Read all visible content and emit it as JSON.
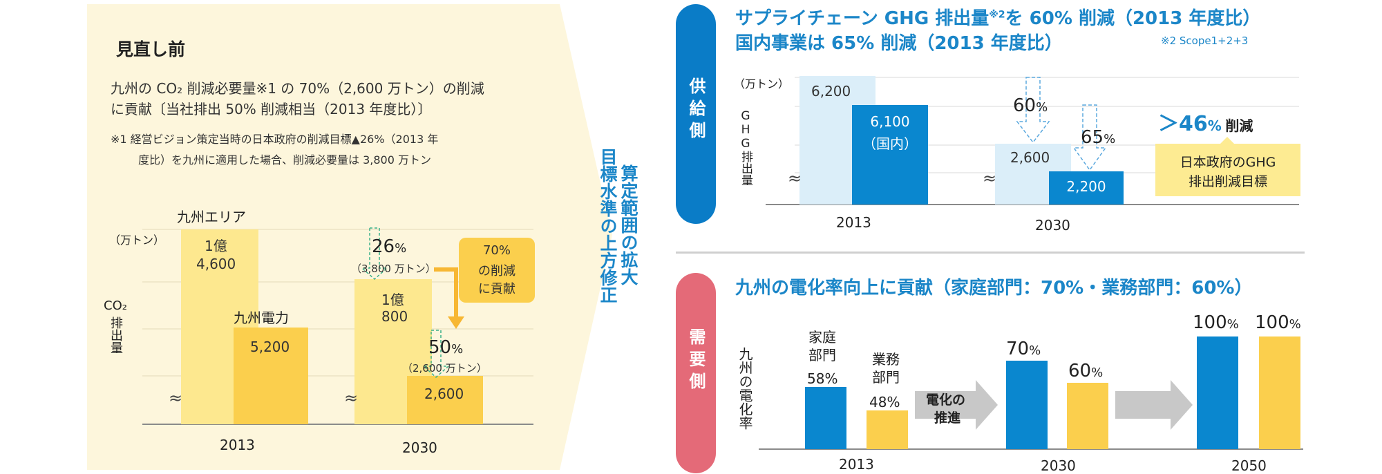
{
  "left_panel": {
    "heading": "見直し前",
    "desc_line1": "九州の CO₂ 削減必要量※1 の 70%（2,600 万トン）の削減",
    "desc_line2": "に貢献〔当社排出 50% 削減相当（2013 年度比）〕",
    "note_line1": "※1 経営ビジョン策定当時の日本政府の削減目標▲26%（2013 年",
    "note_line2": "度比）を九州に適用した場合、削減必要量は 3,800 万トン",
    "legend_kyushu_area": "九州エリア",
    "legend_kyushu_power": "九州電力",
    "unit": "（万トン）",
    "ylabel_co2": "CO₂",
    "ylabel_rest": "排出量",
    "bar_2013_area_l1": "1億",
    "bar_2013_area_l2": "4,600",
    "bar_2013_power": "5,200",
    "bar_2030_area_l1": "1億",
    "bar_2030_area_l2": "800",
    "bar_2030_power": "2,600",
    "pct_26": "26",
    "pct_26_sub": "（3,800 万トン）",
    "pct_50": "50",
    "pct_50_sub": "（2,600 万トン）",
    "pct_sign": "%",
    "callout_l1": "70%",
    "callout_l2": "の削減",
    "callout_l3": "に貢献",
    "year_2013": "2013",
    "year_2030": "2030",
    "break_mark": "≈"
  },
  "arrow_label": {
    "col1": "算定範囲の拡大",
    "col2": "目標水準の上方修正"
  },
  "supply": {
    "pill": "供給側",
    "title_l1_a": "サプライチェーン GHG 排出量",
    "title_l1_sup": "※2",
    "title_l1_b": "を 60% 削減（2013 年度比）",
    "title_l2": "国内事業は 65% 削減（2013 年度比）",
    "footnote": "※2 Scope1+2+3",
    "unit": "（万トン）",
    "ylabel": "GHG排出量",
    "bar_2013_total": "6,200",
    "bar_2013_domestic_l1": "6,100",
    "bar_2013_domestic_l2": "（国内）",
    "bar_2030_total": "2,600",
    "bar_2030_domestic": "2,200",
    "pct_60": "60",
    "pct_65": "65",
    "pct_sign": "%",
    "gt46": "＞46",
    "gt46_pct": "%",
    "gt46_label": "削減",
    "gov_box_l1": "日本政府のGHG",
    "gov_box_l2": "排出削減目標",
    "year_2013": "2013",
    "year_2030": "2030",
    "break_mark": "≈"
  },
  "demand": {
    "pill": "需要側",
    "title": "九州の電化率向上に貢献（家庭部門：70%・業務部門：60%）",
    "ylabel": "九州の電化率",
    "cat_household_l1": "家庭",
    "cat_household_l2": "部門",
    "cat_business_l1": "業務",
    "cat_business_l2": "部門",
    "val_2013_h": "58%",
    "val_2013_b": "48%",
    "val_2030_h": "70",
    "val_2030_b": "60",
    "val_2050_h": "100",
    "val_2050_b": "100",
    "pct_sign": "%",
    "promo_l1": "電化の",
    "promo_l2": "推進",
    "year_2013": "2013",
    "year_2030": "2030",
    "year_2050": "2050"
  },
  "colors": {
    "panel_bg": "#fdf6dc",
    "light_yellow": "#fde88f",
    "dark_yellow": "#fbcf4d",
    "light_blue": "#dbeef9",
    "blue": "#0a87cf",
    "title_blue": "#1b86c8",
    "red": "#e46a78",
    "gov_box": "#fdeb92",
    "grey_arrow": "#c8c8c8"
  },
  "chart_data": [
    {
      "type": "bar",
      "title": "見直し前",
      "categories": [
        "2013",
        "2030"
      ],
      "series": [
        {
          "name": "九州エリア",
          "values": [
            14600,
            10800
          ]
        },
        {
          "name": "九州電力",
          "values": [
            5200,
            2600
          ]
        }
      ],
      "ylabel": "CO₂排出量（万トン）",
      "annotations": [
        "26%（3,800 万トン）",
        "50%（2,600 万トン）",
        "70% の削減に貢献"
      ]
    },
    {
      "type": "bar",
      "title": "サプライチェーン GHG 排出量を 60% 削減（2013 年度比）",
      "categories": [
        "2013",
        "2030"
      ],
      "series": [
        {
          "name": "サプライチェーン",
          "values": [
            6200,
            2600
          ]
        },
        {
          "name": "国内",
          "values": [
            6100,
            2200
          ]
        }
      ],
      "ylabel": "GHG排出量（万トン）",
      "annotations": [
        "60%",
        "65%",
        "＞46% 削減 日本政府のGHG排出削減目標"
      ]
    },
    {
      "type": "bar",
      "title": "九州の電化率向上に貢献（家庭部門：70%・業務部門：60%）",
      "categories": [
        "2013",
        "2030",
        "2050"
      ],
      "series": [
        {
          "name": "家庭部門",
          "values": [
            58,
            70,
            100
          ]
        },
        {
          "name": "業務部門",
          "values": [
            48,
            60,
            100
          ]
        }
      ],
      "ylabel": "九州の電化率",
      "unit": "%"
    }
  ]
}
